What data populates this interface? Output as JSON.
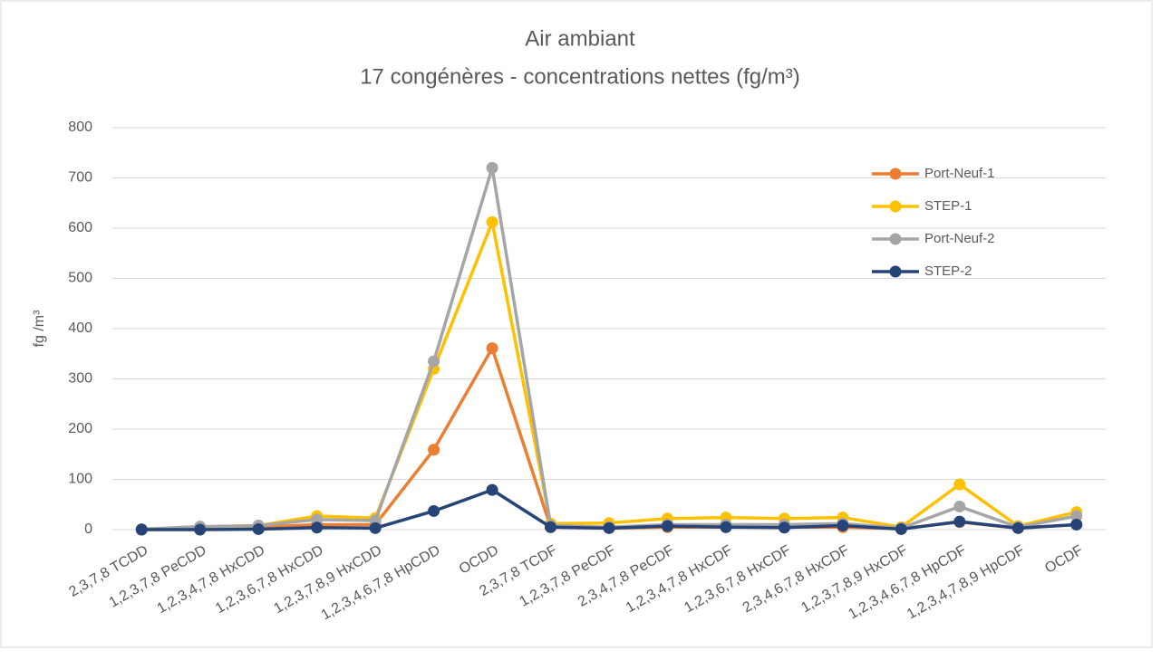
{
  "chart_data": {
    "type": "line",
    "title": "Air ambiant",
    "subtitle": "17 congénères - concentrations nettes (fg/m³)",
    "y_label": "fg /m³",
    "categories": [
      "2,3,7,8 TCDD",
      "1,2,3,7,8 PeCDD",
      "1,2,3,4,7,8 HxCDD",
      "1,2,3,6,7,8 HxCDD",
      "1,2,3,7,8,9 HxCDD",
      "1,2,3,4,6,7,8 HpCDD",
      "OCDD",
      "2,3,7,8 TCDF",
      "1,2,3,7,8 PeCDF",
      "2,3,4,7,8 PeCDF",
      "1,2,3,4,7,8 HxCDF",
      "1,2,3,6,7,8 HxCDF",
      "2,3,4,6,7,8 HxCDF",
      "1,2,3,7,8,9 HxCDF",
      "1,2,3,4,6,7,8 HpCDF",
      "1,2,3,4,7,8,9 HpCDF",
      "OCDF"
    ],
    "series": [
      {
        "name": "Port-Neuf-1",
        "color": "#ed7d31",
        "values": [
          0,
          3,
          5,
          10,
          10,
          159,
          361,
          5,
          3,
          5,
          5,
          5,
          5,
          2,
          15,
          3,
          10
        ]
      },
      {
        "name": "STEP-1",
        "color": "#ffc000",
        "values": [
          1,
          5,
          8,
          27,
          23,
          320,
          612,
          12,
          13,
          22,
          24,
          22,
          24,
          5,
          90,
          7,
          35
        ]
      },
      {
        "name": "Port-Neuf-2",
        "color": "#a5a5a5",
        "values": [
          1,
          6,
          8,
          20,
          18,
          335,
          720,
          8,
          5,
          10,
          10,
          10,
          12,
          3,
          46,
          5,
          27
        ]
      },
      {
        "name": "STEP-2",
        "color": "#264478",
        "values": [
          0,
          0,
          1,
          4,
          3,
          37,
          79,
          5,
          3,
          7,
          5,
          4,
          8,
          1,
          16,
          3,
          10
        ]
      }
    ],
    "ylim": [
      0,
      800
    ],
    "yticks": [
      0,
      100,
      200,
      300,
      400,
      500,
      600,
      700,
      800
    ],
    "grid": true,
    "legend": "top-right"
  }
}
